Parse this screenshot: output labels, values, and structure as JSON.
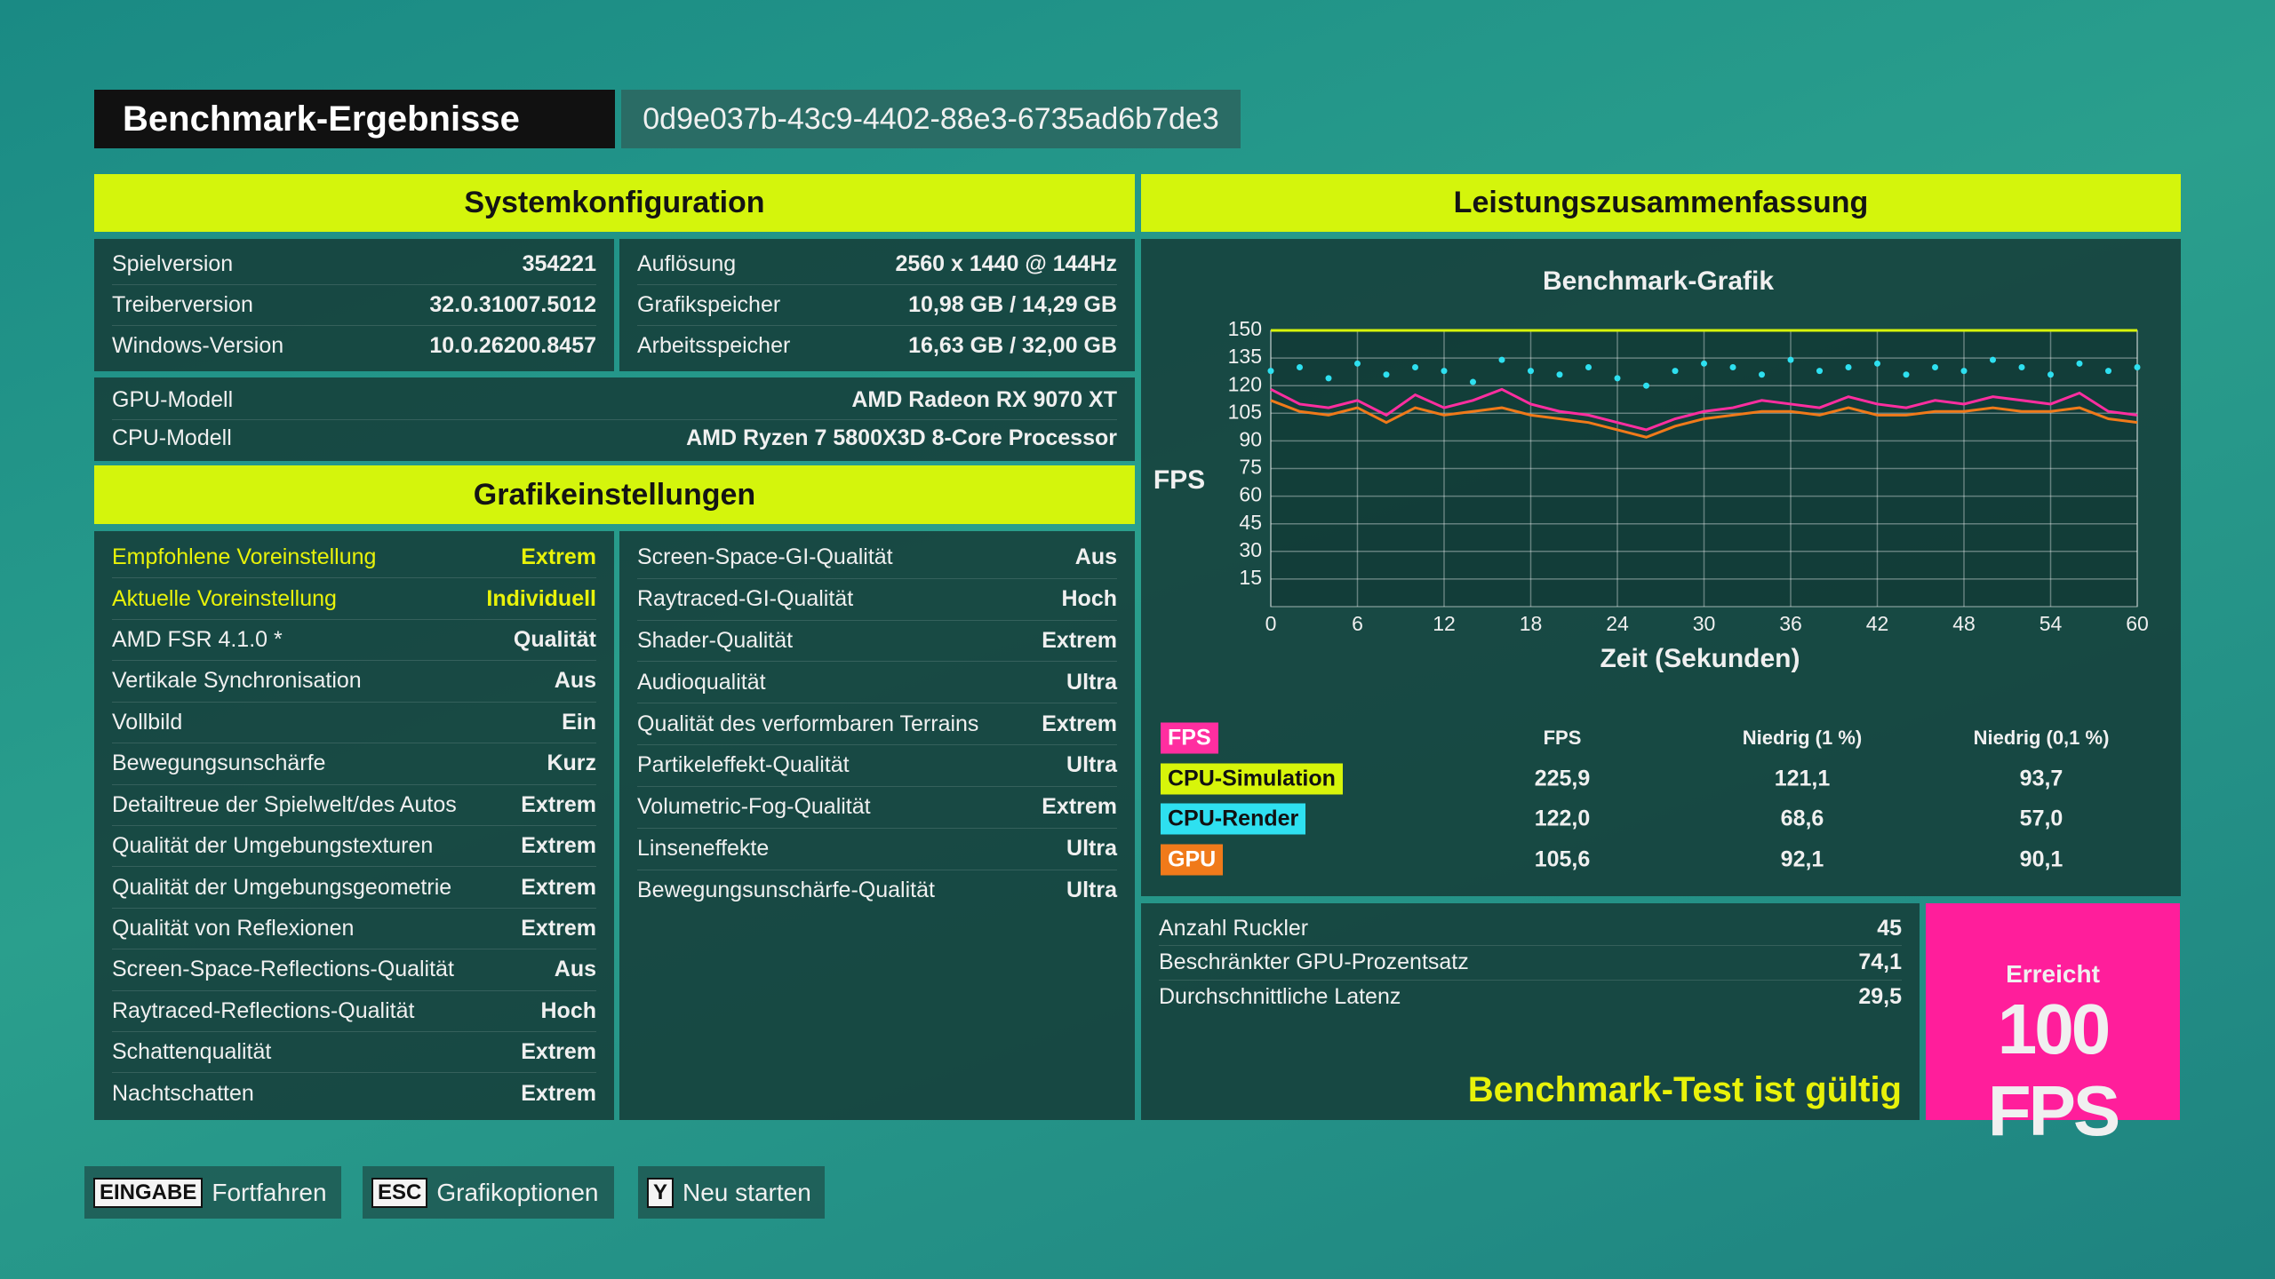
{
  "header": {
    "title": "Benchmark-Ergebnisse",
    "id": "0d9e037b-43c9-4402-88e3-6735ad6b7de3"
  },
  "system": {
    "title": "Systemkonfiguration",
    "left": [
      {
        "label": "Spielversion",
        "value": "354221"
      },
      {
        "label": "Treiberversion",
        "value": "32.0.31007.5012"
      },
      {
        "label": "Windows-Version",
        "value": "10.0.26200.8457"
      }
    ],
    "right": [
      {
        "label": "Auflösung",
        "value": "2560 x 1440 @ 144Hz"
      },
      {
        "label": "Grafikspeicher",
        "value": "10,98 GB / 14,29 GB"
      },
      {
        "label": "Arbeitsspeicher",
        "value": "16,63 GB / 32,00 GB"
      }
    ],
    "hardware": [
      {
        "label": "GPU-Modell",
        "value": "AMD Radeon RX 9070 XT"
      },
      {
        "label": "CPU-Modell",
        "value": "AMD Ryzen 7 5800X3D 8-Core Processor"
      }
    ]
  },
  "graphics": {
    "title": "Grafikeinstellungen",
    "left": [
      {
        "label": "Empfohlene Voreinstellung",
        "value": "Extrem",
        "color": "#e8f20a"
      },
      {
        "label": "Aktuelle Voreinstellung",
        "value": "Individuell",
        "color": "#e8f20a"
      },
      {
        "label": "AMD FSR 4.1.0 *",
        "value": "Qualität"
      },
      {
        "label": "Vertikale Synchronisation",
        "value": "Aus"
      },
      {
        "label": "Vollbild",
        "value": "Ein"
      },
      {
        "label": "Bewegungsunschärfe",
        "value": "Kurz"
      },
      {
        "label": "Detailtreue der Spielwelt/des Autos",
        "value": "Extrem"
      },
      {
        "label": "Qualität der Umgebungstexturen",
        "value": "Extrem"
      },
      {
        "label": "Qualität der Umgebungsgeometrie",
        "value": "Extrem"
      },
      {
        "label": "Qualität von Reflexionen",
        "value": "Extrem"
      },
      {
        "label": "Screen-Space-Reflections-Qualität",
        "value": "Aus"
      },
      {
        "label": "Raytraced-Reflections-Qualität",
        "value": "Hoch"
      },
      {
        "label": "Schattenqualität",
        "value": "Extrem"
      },
      {
        "label": "Nachtschatten",
        "value": "Extrem"
      }
    ],
    "right": [
      {
        "label": "Screen-Space-GI-Qualität",
        "value": "Aus"
      },
      {
        "label": "Raytraced-GI-Qualität",
        "value": "Hoch"
      },
      {
        "label": "Shader-Qualität",
        "value": "Extrem"
      },
      {
        "label": "Audioqualität",
        "value": "Ultra"
      },
      {
        "label": "Qualität des verformbaren Terrains",
        "value": "Extrem"
      },
      {
        "label": "Partikeleffekt-Qualität",
        "value": "Ultra"
      },
      {
        "label": "Volumetric-Fog-Qualität",
        "value": "Extrem"
      },
      {
        "label": "Linseneffekte",
        "value": "Ultra"
      },
      {
        "label": "Bewegungsunschärfe-Qualität",
        "value": "Ultra"
      }
    ]
  },
  "summary": {
    "title": "Leistungszusammenfassung",
    "table": {
      "columns": [
        "FPS",
        "Niedrig (1 %)",
        "Niedrig (0,1 %)"
      ],
      "rows": [
        [
          "225,9",
          "121,1",
          "93,7"
        ],
        [
          "122,0",
          "68,6",
          "57,0"
        ],
        [
          "105,6",
          "92,1",
          "90,1"
        ]
      ]
    },
    "stats": [
      {
        "label": "Anzahl Ruckler",
        "value": "45"
      },
      {
        "label": "Beschränkter GPU-Prozentsatz",
        "value": "74,1"
      },
      {
        "label": "Durchschnittliche Latenz",
        "value": "29,5"
      }
    ],
    "status": "Benchmark-Test ist gültig",
    "achieved": {
      "label": "Erreicht",
      "value": "100 FPS"
    }
  },
  "chart_data": {
    "type": "line",
    "title": "Benchmark-Grafik",
    "y_label": "FPS",
    "x_label": "Zeit (Sekunden)",
    "xlim": [
      0,
      60
    ],
    "ylim": [
      0,
      150
    ],
    "xticks": [
      0,
      6,
      12,
      18,
      24,
      30,
      36,
      42,
      48,
      54,
      60
    ],
    "yticks": [
      15,
      30,
      45,
      60,
      75,
      90,
      105,
      120,
      135,
      150
    ],
    "grid": true,
    "x": [
      0,
      2,
      4,
      6,
      8,
      10,
      12,
      14,
      16,
      18,
      20,
      22,
      24,
      26,
      28,
      30,
      32,
      34,
      36,
      38,
      40,
      42,
      44,
      46,
      48,
      50,
      52,
      54,
      56,
      58,
      60
    ],
    "series": [
      {
        "name": "FPS",
        "color": "#ff2ea0",
        "mode": "line",
        "values": [
          118,
          110,
          108,
          112,
          104,
          115,
          108,
          112,
          118,
          110,
          106,
          104,
          100,
          96,
          102,
          106,
          108,
          112,
          110,
          108,
          114,
          110,
          108,
          112,
          110,
          114,
          112,
          110,
          116,
          106,
          104
        ]
      },
      {
        "name": "CPU-Simulation",
        "color": "#d7f50a",
        "mode": "line",
        "values": [
          150,
          150,
          150,
          150,
          150,
          150,
          150,
          150,
          150,
          150,
          150,
          150,
          150,
          150,
          150,
          150,
          150,
          150,
          150,
          150,
          150,
          150,
          150,
          150,
          150,
          150,
          150,
          150,
          150,
          150,
          150
        ]
      },
      {
        "name": "CPU-Render",
        "color": "#2ee0f0",
        "mode": "points",
        "values": [
          128,
          130,
          124,
          132,
          126,
          130,
          128,
          122,
          134,
          128,
          126,
          130,
          124,
          120,
          128,
          132,
          130,
          126,
          134,
          128,
          130,
          132,
          126,
          130,
          128,
          134,
          130,
          126,
          132,
          128,
          130
        ]
      },
      {
        "name": "GPU",
        "color": "#f07a1a",
        "mode": "line",
        "values": [
          112,
          106,
          104,
          108,
          100,
          108,
          104,
          106,
          108,
          104,
          102,
          100,
          96,
          92,
          98,
          102,
          104,
          106,
          106,
          104,
          108,
          104,
          104,
          106,
          106,
          108,
          106,
          106,
          108,
          102,
          100
        ]
      }
    ]
  },
  "footer": [
    {
      "key": "EINGABE",
      "label": "Fortfahren"
    },
    {
      "key": "ESC",
      "label": "Grafikoptionen"
    },
    {
      "key": "Y",
      "label": "Neu starten"
    }
  ]
}
